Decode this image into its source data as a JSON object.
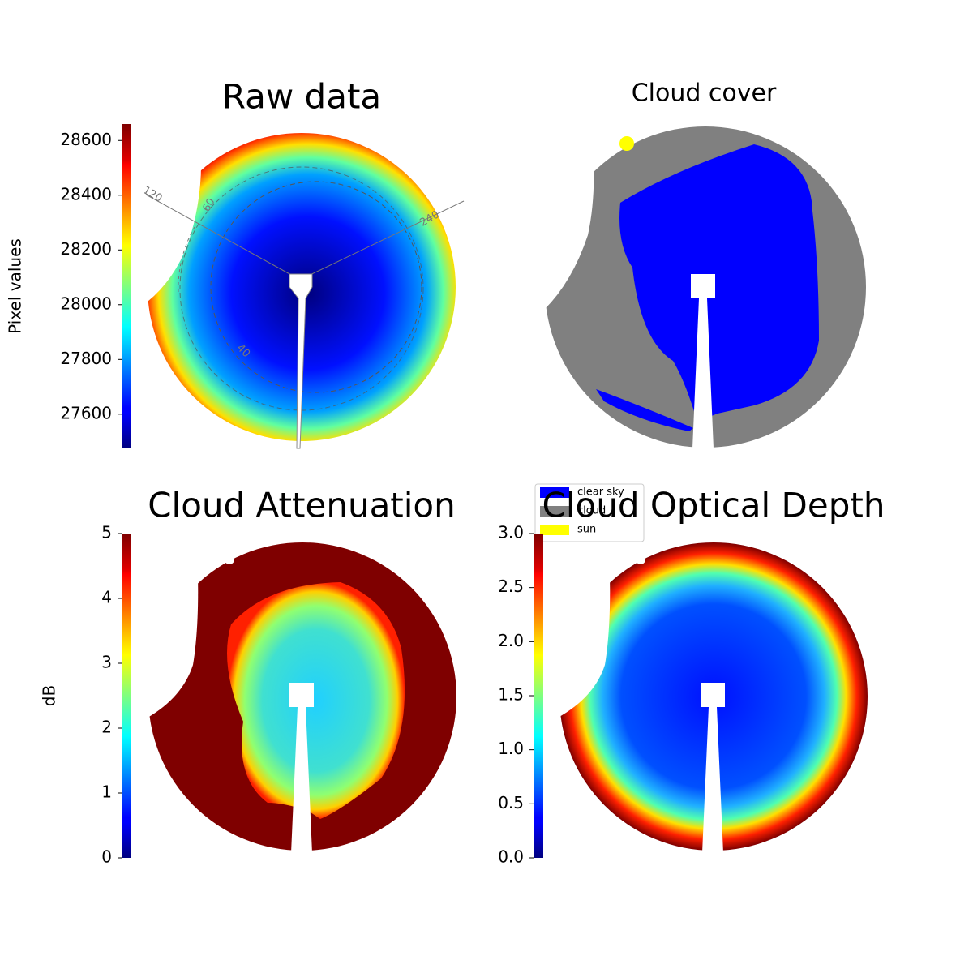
{
  "chart_data": [
    {
      "type": "sky-image",
      "title": "Raw data",
      "colorbar_label": "Pixel values",
      "colormap": "jet",
      "clim": [
        27475,
        28660
      ],
      "cticks": [
        27600,
        27800,
        28000,
        28200,
        28400,
        28600
      ],
      "annotations": [
        "120",
        "60",
        "240",
        "40"
      ]
    },
    {
      "type": "class-image",
      "title": "Cloud cover",
      "legend": [
        {
          "name": "clear sky",
          "color": "#0000ff"
        },
        {
          "name": "cloud",
          "color": "#808080"
        },
        {
          "name": "sun",
          "color": "#ffff00"
        }
      ]
    },
    {
      "type": "sky-image",
      "title": "Cloud Attenuation",
      "colorbar_label": "dB",
      "colormap": "jet",
      "clim": [
        0,
        5
      ],
      "cticks": [
        0,
        1,
        2,
        3,
        4,
        5
      ]
    },
    {
      "type": "sky-image",
      "title": "Cloud Optical Depth",
      "colormap": "jet",
      "clim": [
        0,
        3
      ],
      "cticks": [
        {
          "value": 0,
          "label": "0.0"
        },
        {
          "value": 0.5,
          "label": "0.5"
        },
        {
          "value": 1,
          "label": "1.0"
        },
        {
          "value": 1.5,
          "label": "1.5"
        },
        {
          "value": 2,
          "label": "2.0"
        },
        {
          "value": 2.5,
          "label": "2.5"
        },
        {
          "value": 3,
          "label": "3.0"
        }
      ]
    }
  ]
}
